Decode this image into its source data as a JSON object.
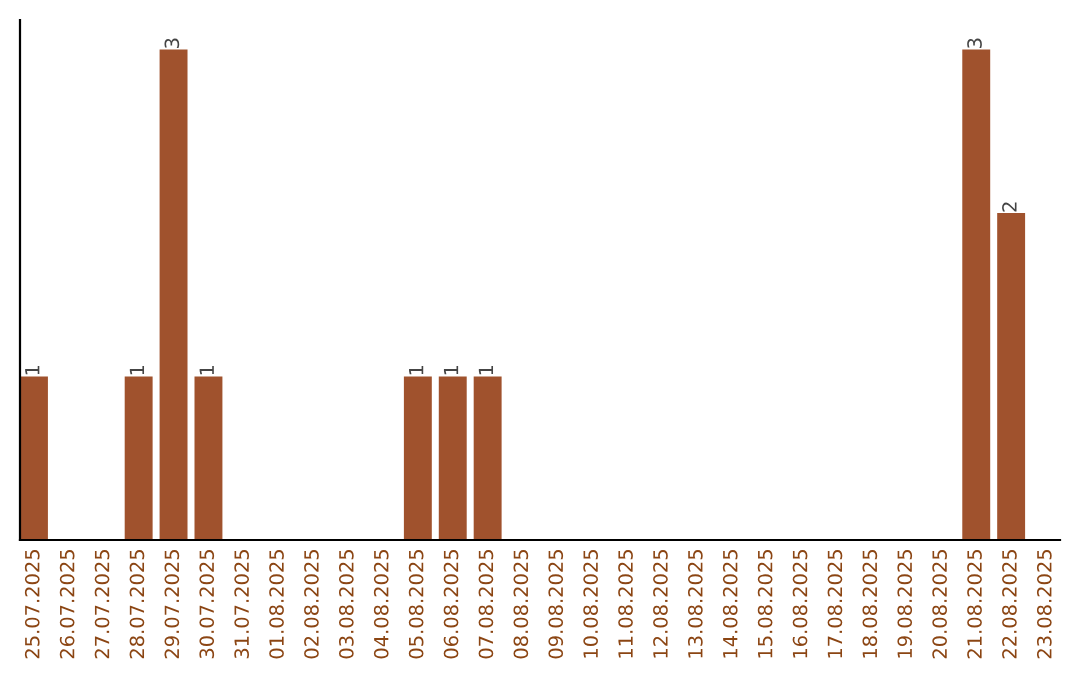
{
  "chart_data": {
    "type": "bar",
    "categories": [
      "25.07.2025",
      "26.07.2025",
      "27.07.2025",
      "28.07.2025",
      "29.07.2025",
      "30.07.2025",
      "31.07.2025",
      "01.08.2025",
      "02.08.2025",
      "03.08.2025",
      "04.08.2025",
      "05.08.2025",
      "06.08.2025",
      "07.08.2025",
      "08.08.2025",
      "09.08.2025",
      "10.08.2025",
      "11.08.2025",
      "12.08.2025",
      "13.08.2025",
      "14.08.2025",
      "15.08.2025",
      "16.08.2025",
      "17.08.2025",
      "18.08.2025",
      "19.08.2025",
      "20.08.2025",
      "21.08.2025",
      "22.08.2025",
      "23.08.2025"
    ],
    "values": [
      1,
      0,
      0,
      1,
      3,
      1,
      0,
      0,
      0,
      0,
      0,
      1,
      1,
      1,
      0,
      0,
      0,
      0,
      0,
      0,
      0,
      0,
      0,
      0,
      0,
      0,
      0,
      3,
      2,
      0
    ],
    "value_labels": [
      "1",
      null,
      null,
      "1",
      "3",
      "1",
      null,
      null,
      null,
      null,
      null,
      "1",
      "1",
      "1",
      null,
      null,
      null,
      null,
      null,
      null,
      null,
      null,
      null,
      null,
      null,
      null,
      null,
      "3",
      "2",
      null
    ],
    "color": "#a0522d",
    "tick_labels": "x",
    "grid": false,
    "legend": false
  }
}
